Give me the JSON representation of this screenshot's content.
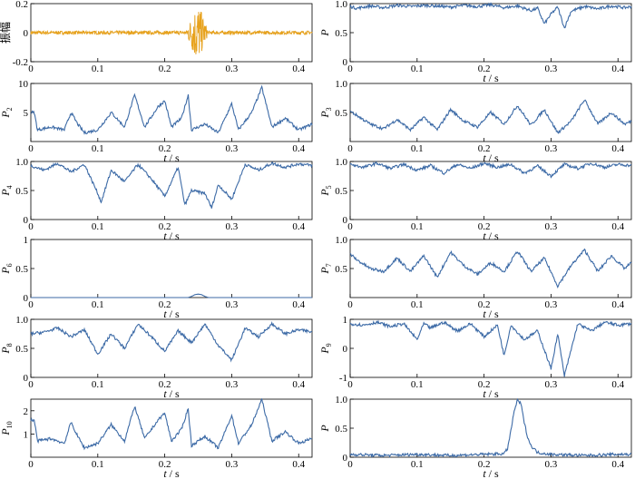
{
  "colors": {
    "series": "#3c6aa6",
    "amplitude": "#e8a21b",
    "amplitude_dark": "#5a4a3a",
    "axis": "#000000"
  },
  "chart_data": [
    {
      "type": "line",
      "id": "amp",
      "ylabel": "振幅",
      "ysub": "",
      "xlabel": "",
      "xlim": [
        0,
        0.42
      ],
      "ylim": [
        -0.2,
        0.2
      ],
      "yticks": [
        "-0.2",
        "0",
        "0.2"
      ],
      "xticks": [
        "0",
        "0.1",
        "0.2",
        "0.3",
        "0.4"
      ],
      "series": [
        {
          "kind": "amplitude",
          "baseline": 0,
          "noise": 0.012,
          "burst_start": 0.232,
          "burst_end": 0.265,
          "burst_peak": 0.21
        }
      ]
    },
    {
      "type": "line",
      "id": "p1",
      "ylabel": "P",
      "ysub": "",
      "xlabel": "t / s",
      "xlim": [
        0,
        0.42
      ],
      "ylim": [
        0,
        1
      ],
      "yticks": [
        "0",
        "0.5",
        "1.0"
      ],
      "xticks": [
        "0",
        "0.1",
        "0.2",
        "0.3",
        "0.4"
      ],
      "series": [
        {
          "x": [
            0,
            0.01,
            0.03,
            0.05,
            0.07,
            0.09,
            0.11,
            0.13,
            0.15,
            0.17,
            0.19,
            0.21,
            0.23,
            0.25,
            0.27,
            0.28,
            0.29,
            0.3,
            0.31,
            0.32,
            0.33,
            0.35,
            0.37,
            0.39,
            0.41,
            0.42
          ],
          "y": [
            0.95,
            0.92,
            0.96,
            0.93,
            0.97,
            0.95,
            0.97,
            0.96,
            0.94,
            0.97,
            0.95,
            0.98,
            0.93,
            0.96,
            0.88,
            0.92,
            0.65,
            0.82,
            0.94,
            0.58,
            0.87,
            0.95,
            0.91,
            0.96,
            0.93,
            0.95
          ]
        }
      ]
    },
    {
      "type": "line",
      "id": "p2",
      "ylabel": "P",
      "ysub": "2",
      "xlabel": "t / s",
      "xlim": [
        0,
        0.42
      ],
      "ylim": [
        0,
        10
      ],
      "yticks": [
        "5",
        "10"
      ],
      "xticks": [
        "0",
        "0.1",
        "0.2",
        "0.3",
        "0.4"
      ],
      "series": [
        {
          "x": [
            0,
            0.005,
            0.01,
            0.03,
            0.05,
            0.06,
            0.07,
            0.08,
            0.1,
            0.12,
            0.14,
            0.155,
            0.17,
            0.19,
            0.2,
            0.21,
            0.225,
            0.235,
            0.24,
            0.26,
            0.28,
            0.3,
            0.31,
            0.33,
            0.345,
            0.36,
            0.38,
            0.4,
            0.42
          ],
          "y": [
            5,
            5,
            2,
            2.5,
            2,
            5,
            3,
            1.5,
            2,
            5,
            2.5,
            8,
            2.5,
            6,
            7,
            2.5,
            4,
            8,
            2,
            3,
            1.5,
            6.5,
            2,
            5,
            9.3,
            2.5,
            4,
            2,
            3
          ]
        }
      ]
    },
    {
      "type": "line",
      "id": "p3",
      "ylabel": "P",
      "ysub": "3",
      "xlabel": "t / s",
      "xlim": [
        0,
        0.42
      ],
      "ylim": [
        0,
        1
      ],
      "yticks": [
        "0.5",
        "1.0"
      ],
      "xticks": [
        "0",
        "0.1",
        "0.2",
        "0.3",
        "0.4"
      ],
      "series": [
        {
          "x": [
            0,
            0.01,
            0.03,
            0.05,
            0.07,
            0.09,
            0.11,
            0.13,
            0.15,
            0.17,
            0.19,
            0.21,
            0.23,
            0.25,
            0.27,
            0.29,
            0.31,
            0.33,
            0.35,
            0.37,
            0.39,
            0.41,
            0.42
          ],
          "y": [
            0.52,
            0.45,
            0.3,
            0.22,
            0.38,
            0.2,
            0.42,
            0.2,
            0.55,
            0.35,
            0.25,
            0.5,
            0.3,
            0.62,
            0.28,
            0.55,
            0.15,
            0.35,
            0.72,
            0.3,
            0.5,
            0.3,
            0.35
          ]
        }
      ]
    },
    {
      "type": "line",
      "id": "p4",
      "ylabel": "P",
      "ysub": "4",
      "xlabel": "t / s",
      "xlim": [
        0,
        0.42
      ],
      "ylim": [
        0,
        1
      ],
      "yticks": [
        "0",
        "0.5",
        "1.0"
      ],
      "xticks": [
        "0",
        "0.1",
        "0.2",
        "0.3",
        "0.4"
      ],
      "series": [
        {
          "x": [
            0,
            0.02,
            0.04,
            0.06,
            0.08,
            0.1,
            0.105,
            0.12,
            0.14,
            0.16,
            0.18,
            0.2,
            0.22,
            0.23,
            0.24,
            0.26,
            0.27,
            0.28,
            0.3,
            0.32,
            0.34,
            0.36,
            0.38,
            0.4,
            0.42
          ],
          "y": [
            0.93,
            0.85,
            0.97,
            0.82,
            0.95,
            0.45,
            0.3,
            0.85,
            0.65,
            0.95,
            0.7,
            0.4,
            0.9,
            0.25,
            0.5,
            0.45,
            0.2,
            0.6,
            0.35,
            0.95,
            0.85,
            0.97,
            0.9,
            0.96,
            0.93
          ]
        }
      ]
    },
    {
      "type": "line",
      "id": "p5",
      "ylabel": "P",
      "ysub": "5",
      "xlabel": "t / s",
      "xlim": [
        0,
        0.42
      ],
      "ylim": [
        0,
        1
      ],
      "yticks": [
        "0",
        "0.5",
        "1.0"
      ],
      "xticks": [
        "0",
        "0.1",
        "0.2",
        "0.3",
        "0.4"
      ],
      "series": [
        {
          "x": [
            0,
            0.02,
            0.04,
            0.06,
            0.08,
            0.1,
            0.12,
            0.14,
            0.16,
            0.18,
            0.2,
            0.22,
            0.24,
            0.26,
            0.28,
            0.3,
            0.32,
            0.34,
            0.36,
            0.38,
            0.4,
            0.42
          ],
          "y": [
            0.95,
            0.9,
            0.97,
            0.88,
            0.95,
            0.85,
            0.93,
            0.8,
            0.95,
            0.88,
            0.97,
            0.9,
            0.95,
            0.8,
            0.92,
            0.75,
            0.95,
            0.88,
            0.97,
            0.9,
            0.95,
            0.93
          ]
        }
      ]
    },
    {
      "type": "line",
      "id": "p6",
      "ylabel": "P",
      "ysub": "6",
      "xlabel": "t / s",
      "xlim": [
        0,
        0.42
      ],
      "ylim": [
        0,
        1
      ],
      "yticks": [
        "0",
        "0.5",
        "1"
      ],
      "xticks": [
        "0",
        "0.1",
        "0.2",
        "0.3",
        "0.4"
      ],
      "series": [
        {
          "x": [
            0,
            0.235,
            0.24,
            0.245,
            0.25,
            0.255,
            0.26,
            0.265,
            0.42
          ],
          "y": [
            0,
            0,
            0.02,
            0.05,
            0.06,
            0.05,
            0.02,
            0,
            0
          ]
        }
      ]
    },
    {
      "type": "line",
      "id": "p7",
      "ylabel": "P",
      "ysub": "7",
      "xlabel": "t / s",
      "xlim": [
        0,
        0.42
      ],
      "ylim": [
        0,
        1
      ],
      "yticks": [
        "0.5",
        "1.0"
      ],
      "xticks": [
        "0",
        "0.1",
        "0.2",
        "0.3",
        "0.4"
      ],
      "series": [
        {
          "x": [
            0,
            0.01,
            0.03,
            0.05,
            0.07,
            0.09,
            0.11,
            0.13,
            0.15,
            0.17,
            0.19,
            0.21,
            0.23,
            0.25,
            0.27,
            0.29,
            0.31,
            0.33,
            0.35,
            0.37,
            0.39,
            0.41,
            0.42
          ],
          "y": [
            0.75,
            0.65,
            0.5,
            0.45,
            0.68,
            0.45,
            0.72,
            0.35,
            0.78,
            0.55,
            0.4,
            0.6,
            0.45,
            0.8,
            0.45,
            0.68,
            0.2,
            0.55,
            0.82,
            0.45,
            0.72,
            0.5,
            0.6
          ]
        }
      ]
    },
    {
      "type": "line",
      "id": "p8",
      "ylabel": "P",
      "ysub": "8",
      "xlabel": "t / s",
      "xlim": [
        0,
        0.42
      ],
      "ylim": [
        0,
        1
      ],
      "yticks": [
        "0",
        "0.5",
        "1.0"
      ],
      "xticks": [
        "0",
        "0.1",
        "0.2",
        "0.3",
        "0.4"
      ],
      "series": [
        {
          "x": [
            0,
            0.02,
            0.04,
            0.06,
            0.08,
            0.1,
            0.12,
            0.14,
            0.16,
            0.18,
            0.2,
            0.22,
            0.24,
            0.26,
            0.28,
            0.3,
            0.32,
            0.34,
            0.36,
            0.38,
            0.4,
            0.42
          ],
          "y": [
            0.75,
            0.78,
            0.85,
            0.7,
            0.82,
            0.4,
            0.75,
            0.5,
            0.92,
            0.7,
            0.45,
            0.8,
            0.6,
            0.92,
            0.55,
            0.3,
            0.85,
            0.7,
            0.92,
            0.75,
            0.82,
            0.78
          ]
        }
      ]
    },
    {
      "type": "line",
      "id": "p9",
      "ylabel": "P",
      "ysub": "9",
      "xlabel": "t / s",
      "xlim": [
        0,
        0.42
      ],
      "ylim": [
        -1,
        1
      ],
      "yticks": [
        "-1",
        "0",
        "1"
      ],
      "xticks": [
        "0",
        "0.1",
        "0.2",
        "0.3",
        "0.4"
      ],
      "series": [
        {
          "x": [
            0,
            0.02,
            0.04,
            0.06,
            0.08,
            0.1,
            0.11,
            0.12,
            0.14,
            0.16,
            0.18,
            0.2,
            0.22,
            0.23,
            0.24,
            0.26,
            0.28,
            0.3,
            0.31,
            0.32,
            0.34,
            0.36,
            0.38,
            0.4,
            0.42
          ],
          "y": [
            0.85,
            0.8,
            0.9,
            0.75,
            0.85,
            0.3,
            0.85,
            0.7,
            0.9,
            0.6,
            0.85,
            0.4,
            0.8,
            -0.25,
            0.8,
            0.3,
            0.6,
            -0.7,
            0.5,
            -0.95,
            0.85,
            0.6,
            0.9,
            0.8,
            0.85
          ]
        }
      ]
    },
    {
      "type": "line",
      "id": "p10",
      "ylabel": "P",
      "ysub": "10",
      "xlabel": "t / s",
      "xlim": [
        0,
        0.42
      ],
      "ylim": [
        0,
        2.5
      ],
      "yticks": [
        "1",
        "2"
      ],
      "xticks": [
        "0",
        "0.1",
        "0.2",
        "0.3",
        "0.4"
      ],
      "series": [
        {
          "x": [
            0,
            0.005,
            0.01,
            0.03,
            0.05,
            0.06,
            0.07,
            0.08,
            0.1,
            0.12,
            0.14,
            0.155,
            0.17,
            0.19,
            0.2,
            0.21,
            0.225,
            0.235,
            0.24,
            0.26,
            0.28,
            0.3,
            0.31,
            0.33,
            0.345,
            0.36,
            0.38,
            0.4,
            0.42
          ],
          "y": [
            1.6,
            1.6,
            0.7,
            0.8,
            0.6,
            1.5,
            0.9,
            0.4,
            0.6,
            1.4,
            0.7,
            2.2,
            0.8,
            1.6,
            1.9,
            0.7,
            1.2,
            2.1,
            0.5,
            0.9,
            0.4,
            1.8,
            0.6,
            1.4,
            2.5,
            0.7,
            1.1,
            0.6,
            0.8
          ]
        }
      ]
    },
    {
      "type": "line",
      "id": "p",
      "ylabel": "P",
      "ysub": "",
      "xlabel": "t / s",
      "xlim": [
        0,
        0.42
      ],
      "ylim": [
        0,
        1
      ],
      "yticks": [
        "0",
        "0.5",
        "1.0"
      ],
      "xticks": [
        "0",
        "0.1",
        "0.2",
        "0.3",
        "0.4"
      ],
      "series": [
        {
          "x": [
            0,
            0.05,
            0.1,
            0.15,
            0.2,
            0.23,
            0.235,
            0.24,
            0.245,
            0.25,
            0.255,
            0.26,
            0.265,
            0.27,
            0.28,
            0.3,
            0.35,
            0.4,
            0.42
          ],
          "y": [
            0.05,
            0.03,
            0.05,
            0.03,
            0.05,
            0.06,
            0.15,
            0.45,
            0.8,
            0.98,
            0.92,
            0.6,
            0.35,
            0.2,
            0.08,
            0.05,
            0.03,
            0.05,
            0.05
          ]
        }
      ]
    }
  ]
}
